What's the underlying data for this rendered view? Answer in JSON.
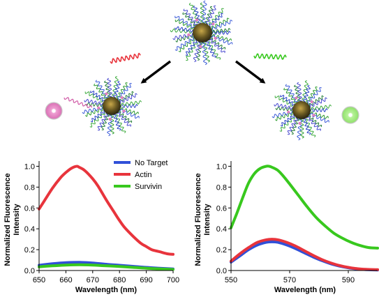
{
  "colors": {
    "blue": "#3050d8",
    "red": "#e8343c",
    "green": "#38c81e",
    "nanoparticle_core": "#6a5a22",
    "pink_fluorophore": "#e27fbd",
    "green_fluorophore": "#9de87a"
  },
  "illustration": {
    "top_nanoparticle": "oligonucleotide-coated gold nanoparticle",
    "left_target_strand": "red helix (actin target)",
    "right_target_strand": "green helix (survivin target)",
    "left_result": "nanoparticle with released pink fluorophore",
    "right_result": "nanoparticle with released green fluorophore"
  },
  "chart_data": [
    {
      "type": "line",
      "title": "",
      "xlabel": "Wavelength (nm)",
      "ylabel": "Normalized Fluorescence Intensity",
      "xlim": [
        650,
        700
      ],
      "ylim": [
        0,
        1.05
      ],
      "xticks": [
        "650",
        "660",
        "670",
        "680",
        "690",
        "700"
      ],
      "yticks": [
        "0.0",
        "0.2",
        "0.4",
        "0.6",
        "0.8",
        "1.0"
      ],
      "legend": {
        "placement": "top-right",
        "entries": [
          "No Target",
          "Actin",
          "Survivin"
        ]
      },
      "grid": false,
      "series": [
        {
          "name": "No Target",
          "color": "blue",
          "x": [
            650,
            655,
            660,
            665,
            670,
            675,
            680,
            685,
            690,
            695,
            700
          ],
          "values": [
            0.05,
            0.065,
            0.075,
            0.078,
            0.072,
            0.06,
            0.05,
            0.04,
            0.03,
            0.022,
            0.015
          ]
        },
        {
          "name": "Actin",
          "color": "red",
          "x": [
            650,
            652,
            655,
            658,
            660,
            662,
            664,
            665,
            667,
            670,
            672,
            675,
            678,
            680,
            682,
            685,
            688,
            690,
            692,
            695,
            698,
            700
          ],
          "values": [
            0.59,
            0.67,
            0.79,
            0.89,
            0.94,
            0.98,
            1.0,
            0.99,
            0.96,
            0.88,
            0.81,
            0.68,
            0.56,
            0.48,
            0.41,
            0.33,
            0.26,
            0.23,
            0.2,
            0.18,
            0.16,
            0.155
          ]
        },
        {
          "name": "Survivin",
          "color": "green",
          "x": [
            650,
            655,
            660,
            665,
            670,
            675,
            680,
            685,
            690,
            695,
            700
          ],
          "values": [
            0.035,
            0.045,
            0.052,
            0.055,
            0.052,
            0.045,
            0.038,
            0.03,
            0.022,
            0.016,
            0.01
          ]
        }
      ]
    },
    {
      "type": "line",
      "title": "",
      "xlabel": "Wavelength (nm)",
      "ylabel": "Normalized Fluorescence Intensity",
      "xlim": [
        550,
        600
      ],
      "ylim": [
        0,
        1.05
      ],
      "xticks": [
        "550",
        "570",
        "590"
      ],
      "yticks": [
        "0.0",
        "0.2",
        "0.4",
        "0.6",
        "0.8",
        "1.0"
      ],
      "legend": {
        "placement": "none",
        "entries": []
      },
      "grid": false,
      "series": [
        {
          "name": "No Target",
          "color": "blue",
          "x": [
            550,
            553,
            556,
            559,
            562,
            564,
            566,
            569,
            572,
            575,
            578,
            581,
            584,
            587,
            590,
            593,
            596,
            600
          ],
          "values": [
            0.08,
            0.14,
            0.2,
            0.245,
            0.27,
            0.275,
            0.27,
            0.245,
            0.21,
            0.17,
            0.13,
            0.095,
            0.065,
            0.042,
            0.026,
            0.015,
            0.009,
            0.005
          ]
        },
        {
          "name": "Actin",
          "color": "red",
          "x": [
            550,
            553,
            556,
            559,
            562,
            564,
            566,
            569,
            572,
            575,
            578,
            581,
            584,
            587,
            590,
            593,
            596,
            600
          ],
          "values": [
            0.09,
            0.16,
            0.22,
            0.27,
            0.295,
            0.3,
            0.295,
            0.27,
            0.235,
            0.19,
            0.145,
            0.105,
            0.073,
            0.048,
            0.03,
            0.018,
            0.012,
            0.008
          ]
        },
        {
          "name": "Survivin",
          "color": "green",
          "x": [
            550,
            552,
            554,
            556,
            558,
            560,
            562,
            563,
            564,
            566,
            568,
            570,
            573,
            576,
            579,
            582,
            585,
            588,
            591,
            594,
            597,
            600
          ],
          "values": [
            0.41,
            0.55,
            0.7,
            0.84,
            0.93,
            0.98,
            1.0,
            1.0,
            0.99,
            0.96,
            0.9,
            0.83,
            0.72,
            0.61,
            0.51,
            0.43,
            0.36,
            0.31,
            0.27,
            0.24,
            0.22,
            0.215
          ]
        }
      ]
    }
  ]
}
